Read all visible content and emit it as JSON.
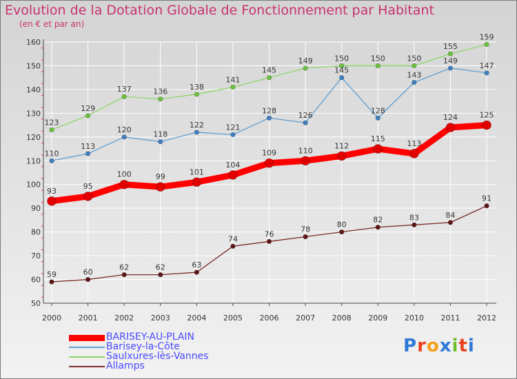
{
  "title": "Evolution de la Dotation Globale de Fonctionnement par Habitant",
  "subtitle": "(en € et par an)",
  "logo": {
    "letters": [
      "P",
      "r",
      "o",
      "x",
      "i",
      "t",
      "i"
    ],
    "colors": [
      "#2f7ad6",
      "#e8431f",
      "#f5a01a",
      "#2f7ad6",
      "#6cbf2a",
      "#e8431f",
      "#2f7ad6"
    ]
  },
  "chart_data": {
    "type": "line",
    "title": "Evolution de la Dotation Globale de Fonctionnement par Habitant",
    "ylabel": "(en € et par an)",
    "x": [
      "2000",
      "2001",
      "2002",
      "2003",
      "2004",
      "2005",
      "2006",
      "2007",
      "2008",
      "2009",
      "2010",
      "2011",
      "2012"
    ],
    "ylim": [
      50,
      160
    ],
    "yticks": [
      "50",
      "60",
      "70",
      "80",
      "90",
      "100",
      "110",
      "120",
      "130",
      "140",
      "150",
      "160"
    ],
    "grid": true,
    "series": [
      {
        "name": "Saulxures-lès-Vannes",
        "color": "#8fd66a",
        "marker": "#6cc23f",
        "width": 1.3,
        "radius": 3.3,
        "values": [
          123,
          129,
          137,
          136,
          138,
          141,
          145,
          149,
          150,
          150,
          150,
          155,
          159
        ]
      },
      {
        "name": "Barisey-la-Côte",
        "color": "#5b9fd4",
        "marker": "#3f7fc0",
        "width": 1.3,
        "radius": 3.3,
        "values": [
          110,
          113,
          120,
          118,
          122,
          121,
          128,
          126,
          145,
          128,
          143,
          149,
          147
        ]
      },
      {
        "name": "Allamps",
        "color": "#7a2a2a",
        "marker": "#5e1515",
        "width": 1.3,
        "radius": 3.3,
        "values": [
          59,
          60,
          62,
          62,
          63,
          74,
          76,
          78,
          80,
          82,
          83,
          84,
          91
        ]
      },
      {
        "name": "BARISEY-AU-PLAIN",
        "color": "#ff0000",
        "marker": "#e00000",
        "width": 9,
        "radius": 6.5,
        "values": [
          93,
          95,
          100,
          99,
          101,
          104,
          109,
          110,
          112,
          115,
          113,
          124,
          125
        ]
      }
    ],
    "legend": [
      {
        "name": "BARISEY-AU-PLAIN",
        "color": "#ff0000",
        "thickness": 9
      },
      {
        "name": "Barisey-la-Côte",
        "color": "#5b9fd4",
        "thickness": 2
      },
      {
        "name": "Saulxures-lès-Vannes",
        "color": "#8fd66a",
        "thickness": 2
      },
      {
        "name": "Allamps",
        "color": "#7a2a2a",
        "thickness": 2
      }
    ],
    "legend_position": "bottom-left"
  }
}
